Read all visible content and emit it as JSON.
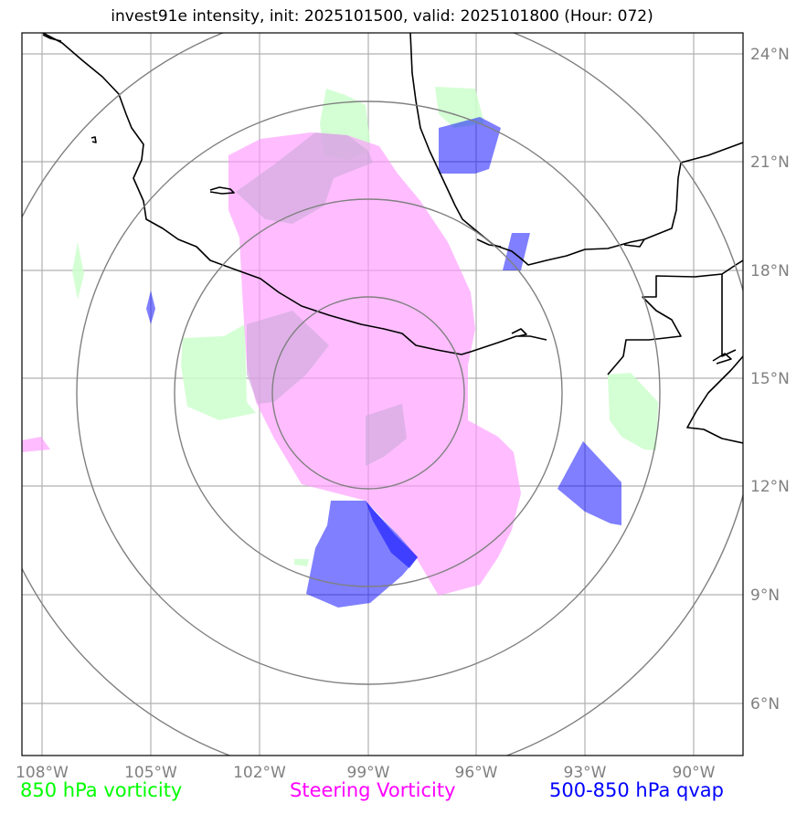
{
  "title": "invest91e intensity, init: 2025101500, valid: 2025101800 (Hour: 072)",
  "longitude_labels": [
    "108°W",
    "105°W",
    "102°W",
    "99°W",
    "96°W",
    "93°W",
    "90°W"
  ],
  "latitude_labels": [
    "24°N",
    "21°N",
    "18°N",
    "15°N",
    "12°N",
    "9°N",
    "6°N"
  ],
  "legend": [
    {
      "label": "850 hPa vorticity",
      "color": "#00ff00"
    },
    {
      "label": "Steering Vorticity",
      "color": "#ff00ff"
    },
    {
      "label": "500-850 hPa qvap",
      "color": "#0000ff"
    }
  ],
  "colors": {
    "vorticity_850_fill": "#ccffcc",
    "steering_vorticity_fill": "#ffaaff",
    "qvap_fill": "#0000ff",
    "gridlines": "#b0b0b0",
    "range_rings": "#808080",
    "coastline": "#000000"
  }
}
